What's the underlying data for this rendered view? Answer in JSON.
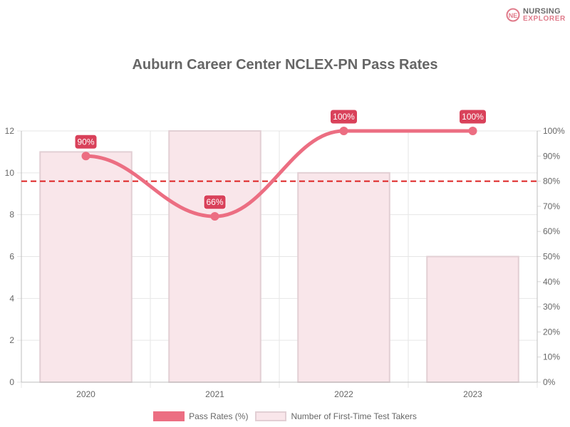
{
  "brand": {
    "line1": "NURSING",
    "line2": "EXPLORER",
    "mark": "NE"
  },
  "chart_data": {
    "type": "bar",
    "title": "Auburn Career Center NCLEX-PN Pass Rates",
    "categories": [
      "2020",
      "2021",
      "2022",
      "2023"
    ],
    "series": [
      {
        "name": "Pass Rates (%)",
        "type": "line",
        "axis": "right",
        "values": [
          90,
          66,
          100,
          100
        ],
        "data_labels": [
          "90%",
          "66%",
          "100%",
          "100%"
        ],
        "color": "#ec6e82"
      },
      {
        "name": "Number of First-Time Test Takers",
        "type": "bar",
        "axis": "left",
        "values": [
          11,
          12,
          10,
          6
        ],
        "color": "#f9e6ea",
        "border_color": "#e2cfd4"
      }
    ],
    "reference_line": {
      "axis": "right",
      "value": 80,
      "color": "#dd2222",
      "style": "dashed"
    },
    "y_left": {
      "ylim": [
        0,
        12
      ],
      "ticks": [
        "0",
        "2",
        "4",
        "6",
        "8",
        "10",
        "12"
      ]
    },
    "y_right": {
      "ylim": [
        0,
        100
      ],
      "ticks": [
        "0%",
        "10%",
        "20%",
        "30%",
        "40%",
        "50%",
        "60%",
        "70%",
        "80%",
        "90%",
        "100%"
      ]
    },
    "grid": true,
    "legend_position": "bottom"
  }
}
